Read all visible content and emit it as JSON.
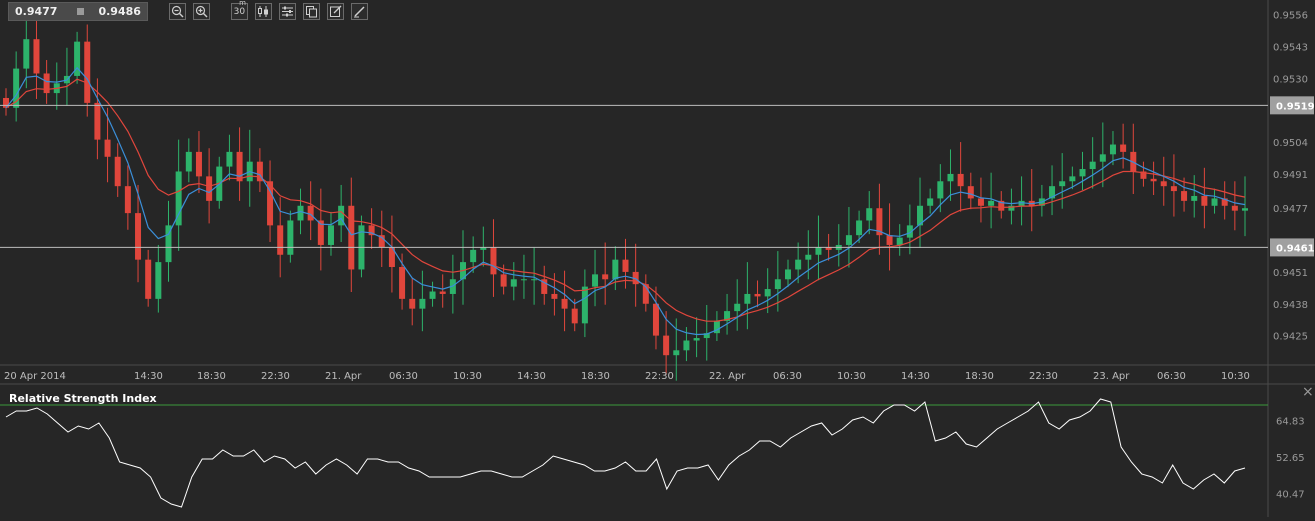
{
  "toolbar": {
    "bid": "0.9477",
    "ask": "0.9486",
    "timeframe": "30",
    "timeframe_suffix": "m",
    "buttons": [
      "zoom-out-icon",
      "zoom-in-icon",
      "timeframe",
      "candles-icon",
      "indicators-icon",
      "copy-icon",
      "edit-icon",
      "draw-icon"
    ]
  },
  "colors": {
    "background": "#262626",
    "bull": "#2db36b",
    "bear": "#e0463c",
    "ma_fast": "#3b8fd9",
    "ma_slow": "#e0463c",
    "level_line": "#bdbdbd",
    "rsi_line": "#ffffff",
    "rsi_upper": "#3c9a3c",
    "rsi_lower": "#d03a2a",
    "price_label_bg": "#a0a0a0"
  },
  "chart_data": [
    {
      "type": "candlestick",
      "title": "",
      "x_tick_labels": [
        "20 Apr 2014",
        "14:30",
        "18:30",
        "22:30",
        "21. Apr",
        "06:30",
        "10:30",
        "14:30",
        "18:30",
        "22:30",
        "22. Apr",
        "06:30",
        "10:30",
        "14:30",
        "18:30",
        "22:30",
        "23. Apr",
        "06:30",
        "10:30"
      ],
      "y_tick_labels": [
        "0.9556",
        "0.9543",
        "0.9530",
        "0.9504",
        "0.9491",
        "0.9477",
        "0.9451",
        "0.9438",
        "0.9425"
      ],
      "ylim": [
        0.9413,
        0.9562
      ],
      "horizontal_levels": [
        0.9519,
        0.9461
      ],
      "level_labels": [
        "0.9519",
        "0.9461"
      ],
      "series": [
        {
          "name": "",
          "kind": "candles",
          "close_path": [
            0.9518,
            0.9534,
            0.9546,
            0.9532,
            0.9524,
            0.9528,
            0.9531,
            0.9545,
            0.952,
            0.9505,
            0.9498,
            0.9486,
            0.9475,
            0.9456,
            0.944,
            0.9455,
            0.947,
            0.9492,
            0.95,
            0.949,
            0.948,
            0.9494,
            0.95,
            0.9488,
            0.9496,
            0.9488,
            0.947,
            0.9458,
            0.9472,
            0.9478,
            0.9472,
            0.9462,
            0.947,
            0.9478,
            0.9452,
            0.947,
            0.9466,
            0.9461,
            0.9453,
            0.944,
            0.9436,
            0.944,
            0.9443,
            0.9442,
            0.9448,
            0.9455,
            0.946,
            0.9461,
            0.945,
            0.9445,
            0.9448,
            0.9448,
            0.9448,
            0.9442,
            0.944,
            0.9436,
            0.943,
            0.9445,
            0.945,
            0.9448,
            0.9456,
            0.9451,
            0.9446,
            0.9438,
            0.9425,
            0.9417,
            0.9419,
            0.9423,
            0.9424,
            0.9426,
            0.9431,
            0.9435,
            0.9438,
            0.9442,
            0.9441,
            0.9444,
            0.9448,
            0.9452,
            0.9456,
            0.9458,
            0.9461,
            0.946,
            0.9462,
            0.9466,
            0.9472,
            0.9477,
            0.9466,
            0.9462,
            0.9465,
            0.947,
            0.9478,
            0.9481,
            0.9488,
            0.9491,
            0.9486,
            0.9481,
            0.9478,
            0.948,
            0.9476,
            0.9478,
            0.948,
            0.9478,
            0.9481,
            0.9486,
            0.9488,
            0.949,
            0.9493,
            0.9496,
            0.9499,
            0.9503,
            0.95,
            0.9492,
            0.9489,
            0.9488,
            0.9486,
            0.9484,
            0.948,
            0.9482,
            0.9478,
            0.9481,
            0.9478,
            0.9476,
            0.9477
          ]
        },
        {
          "name": "",
          "kind": "moving_average_fast"
        },
        {
          "name": "",
          "kind": "moving_average_slow"
        }
      ]
    },
    {
      "type": "line",
      "title": "Relative Strength Index",
      "y_tick_labels": [
        "64.83",
        "52.65",
        "40.47"
      ],
      "ylim": [
        34.0,
        75.0
      ],
      "reference_lines": [
        70.0,
        30.0
      ],
      "series": [
        {
          "name": "Relative Strength Index",
          "values": [
            66,
            68,
            68,
            69,
            67,
            64,
            61,
            63,
            62,
            64,
            59,
            51,
            50,
            49,
            46,
            39,
            37,
            36,
            46,
            52,
            52,
            55,
            53,
            53,
            55,
            51,
            53,
            52,
            49,
            51,
            47,
            50,
            52,
            50,
            47,
            52,
            52,
            51,
            51,
            49,
            48,
            46,
            46,
            46,
            46,
            47,
            48,
            48,
            47,
            46,
            46,
            48,
            50,
            53,
            52,
            51,
            50,
            48,
            48,
            49,
            51,
            48,
            48,
            52,
            42,
            48,
            49,
            49,
            50,
            45,
            50,
            53,
            55,
            58,
            58,
            56,
            59,
            61,
            63,
            64,
            60,
            62,
            65,
            66,
            64,
            68,
            70,
            70,
            68,
            71,
            58,
            59,
            61,
            57,
            56,
            59,
            62,
            64,
            66,
            68,
            71,
            64,
            62,
            65,
            66,
            68,
            72,
            71,
            56,
            51,
            47,
            46,
            44,
            50,
            44,
            42,
            45,
            47,
            44,
            48,
            49
          ]
        }
      ]
    }
  ]
}
